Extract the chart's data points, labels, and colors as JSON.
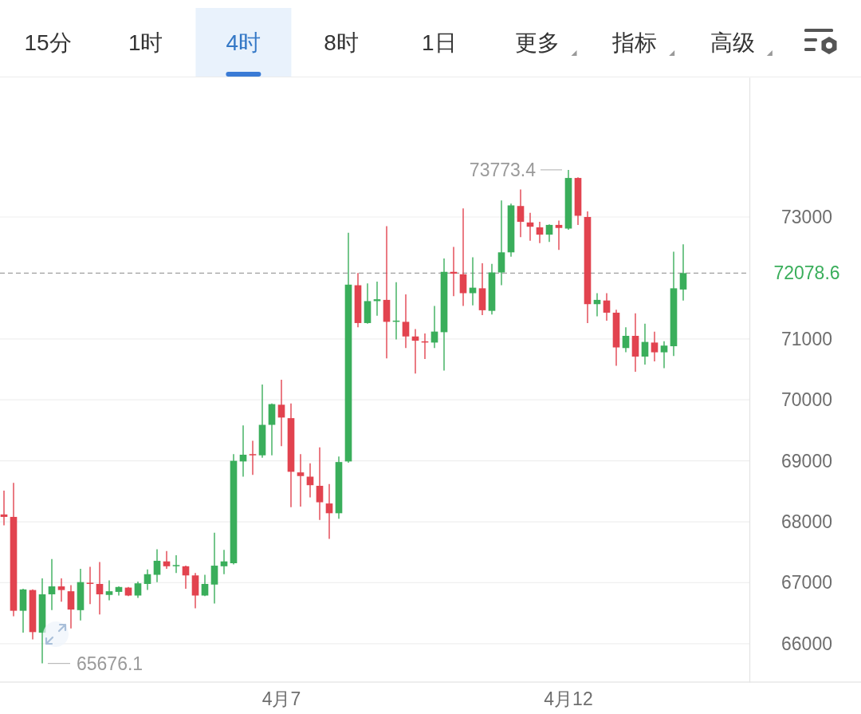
{
  "chart_data": [
    {
      "type": "other",
      "annotations": [
        "15分",
        "1时",
        "4时",
        "8时",
        "1日",
        "更多",
        "指标",
        "高级"
      ]
    },
    {
      "type": "candlestick",
      "categories": [
        null,
        null,
        null,
        null,
        null,
        null,
        null,
        null,
        null,
        null,
        null,
        null,
        null,
        null,
        null,
        null,
        null,
        null,
        null,
        null,
        null,
        null,
        null,
        null,
        null,
        null,
        null,
        null,
        null,
        "4月7",
        null,
        null,
        null,
        null,
        null,
        null,
        null,
        null,
        null,
        null,
        null,
        null,
        null,
        null,
        null,
        null,
        null,
        null,
        null,
        null,
        null,
        null,
        null,
        null,
        null,
        null,
        null,
        null,
        null,
        "4月12",
        null,
        null,
        null,
        null,
        null,
        null,
        null,
        null,
        null,
        null,
        null,
        null
      ],
      "ohlc": [
        [
          68120,
          68510,
          67940,
          68080
        ],
        [
          68080,
          68640,
          66450,
          66540
        ],
        [
          66540,
          66900,
          66180,
          66890
        ],
        [
          66880,
          66890,
          66070,
          66190
        ],
        [
          66180,
          67070,
          65676.1,
          66810
        ],
        [
          66810,
          67390,
          66550,
          66940
        ],
        [
          66940,
          67070,
          66690,
          66880
        ],
        [
          66860,
          66960,
          66250,
          66560
        ],
        [
          66550,
          67230,
          66380,
          67010
        ],
        [
          67000,
          67260,
          66650,
          66990
        ],
        [
          66980,
          67340,
          66480,
          66810
        ],
        [
          66800,
          67040,
          66710,
          66860
        ],
        [
          66850,
          66940,
          66790,
          66930
        ],
        [
          66920,
          66930,
          66780,
          66790
        ],
        [
          66790,
          67020,
          66750,
          66990
        ],
        [
          66980,
          67220,
          66880,
          67140
        ],
        [
          67130,
          67550,
          67010,
          67360
        ],
        [
          67350,
          67520,
          67230,
          67270
        ],
        [
          67280,
          67450,
          67160,
          67290
        ],
        [
          67270,
          67280,
          66900,
          67120
        ],
        [
          67120,
          67160,
          66580,
          66790
        ],
        [
          66790,
          67130,
          66780,
          66980
        ],
        [
          66970,
          67820,
          66660,
          67280
        ],
        [
          67270,
          67540,
          67140,
          67350
        ],
        [
          67320,
          69110,
          67300,
          69000
        ],
        [
          68990,
          69580,
          68740,
          69100
        ],
        [
          69110,
          69330,
          68770,
          69090
        ],
        [
          69090,
          70250,
          69050,
          69590
        ],
        [
          69590,
          69940,
          69090,
          69930
        ],
        [
          69920,
          70330,
          69240,
          69710
        ],
        [
          69700,
          69940,
          68240,
          68820
        ],
        [
          68810,
          69110,
          68250,
          68750
        ],
        [
          68740,
          68960,
          68400,
          68600
        ],
        [
          68590,
          69220,
          68030,
          68320
        ],
        [
          68300,
          68620,
          67720,
          68140
        ],
        [
          68140,
          69070,
          68050,
          68980
        ],
        [
          68990,
          72740,
          68970,
          71890
        ],
        [
          71880,
          72080,
          71190,
          71260
        ],
        [
          71260,
          71910,
          71250,
          71620
        ],
        [
          71620,
          71940,
          71380,
          71650
        ],
        [
          71640,
          72850,
          70680,
          71280
        ],
        [
          71290,
          71930,
          70990,
          71300
        ],
        [
          71280,
          71730,
          70850,
          71040
        ],
        [
          71040,
          71160,
          70430,
          70970
        ],
        [
          70960,
          71090,
          70670,
          70950
        ],
        [
          70940,
          71540,
          70850,
          71120
        ],
        [
          71110,
          72320,
          70480,
          72100
        ],
        [
          72100,
          72510,
          71700,
          72070
        ],
        [
          72060,
          73140,
          71540,
          71750
        ],
        [
          71750,
          72340,
          71550,
          71840
        ],
        [
          71830,
          72240,
          71390,
          71470
        ],
        [
          71460,
          72230,
          71400,
          72090
        ],
        [
          72090,
          73270,
          71880,
          72420
        ],
        [
          72420,
          73220,
          72350,
          73190
        ],
        [
          73180,
          73450,
          72670,
          72920
        ],
        [
          72910,
          73070,
          72610,
          72840
        ],
        [
          72830,
          72920,
          72570,
          72710
        ],
        [
          72710,
          72880,
          72590,
          72870
        ],
        [
          72870,
          72940,
          72460,
          72820
        ],
        [
          72810,
          73773.4,
          72790,
          73640
        ],
        [
          73640,
          73650,
          72870,
          73020
        ],
        [
          73000,
          73090,
          71260,
          71570
        ],
        [
          71570,
          71750,
          71370,
          71640
        ],
        [
          71630,
          71750,
          71300,
          71430
        ],
        [
          71430,
          71480,
          70560,
          70860
        ],
        [
          70850,
          71190,
          70780,
          71050
        ],
        [
          71050,
          71420,
          70460,
          70710
        ],
        [
          70710,
          71250,
          70580,
          70950
        ],
        [
          70940,
          71120,
          70630,
          70780
        ],
        [
          70780,
          70960,
          70520,
          70890
        ],
        [
          70880,
          72430,
          70720,
          71830
        ],
        [
          71810,
          72550,
          71630,
          72078.6
        ]
      ],
      "colors": [
        "#e2434f",
        "#e2434f",
        "#3aae5b",
        "#e2434f",
        "#3aae5b",
        "#3aae5b",
        "#e2434f",
        "#e2434f",
        "#3aae5b",
        "#e2434f",
        "#e2434f",
        "#3aae5b",
        "#3aae5b",
        "#e2434f",
        "#3aae5b",
        "#3aae5b",
        "#3aae5b",
        "#e2434f",
        "#3aae5b",
        "#e2434f",
        "#e2434f",
        "#3aae5b",
        "#3aae5b",
        "#3aae5b",
        "#3aae5b",
        "#3aae5b",
        "#e2434f",
        "#3aae5b",
        "#3aae5b",
        "#e2434f",
        "#e2434f",
        "#e2434f",
        "#e2434f",
        "#e2434f",
        "#e2434f",
        "#3aae5b",
        "#3aae5b",
        "#e2434f",
        "#3aae5b",
        "#3aae5b",
        "#e2434f",
        "#3aae5b",
        "#e2434f",
        "#e2434f",
        "#e2434f",
        "#3aae5b",
        "#3aae5b",
        "#e2434f",
        "#e2434f",
        "#3aae5b",
        "#e2434f",
        "#3aae5b",
        "#3aae5b",
        "#3aae5b",
        "#e2434f",
        "#e2434f",
        "#e2434f",
        "#3aae5b",
        "#e2434f",
        "#3aae5b",
        "#e2434f",
        "#e2434f",
        "#3aae5b",
        "#e2434f",
        "#e2434f",
        "#3aae5b",
        "#e2434f",
        "#3aae5b",
        "#e2434f",
        "#3aae5b",
        "#3aae5b",
        "#3aae5b"
      ],
      "ylim": [
        65370,
        75290
      ],
      "yticks": [
        66000,
        67000,
        68000,
        69000,
        70000,
        71000,
        73000
      ],
      "grid": "y",
      "ref_lines": [
        {
          "axis": "y",
          "value": 72078.6,
          "label": "72078.6",
          "color": "#a0a0a0",
          "line_style": "dashed"
        }
      ],
      "annotations": [
        {
          "text": "73773.4",
          "x": "4月12",
          "y": 73773.4
        },
        "65676.1"
      ]
    }
  ]
}
